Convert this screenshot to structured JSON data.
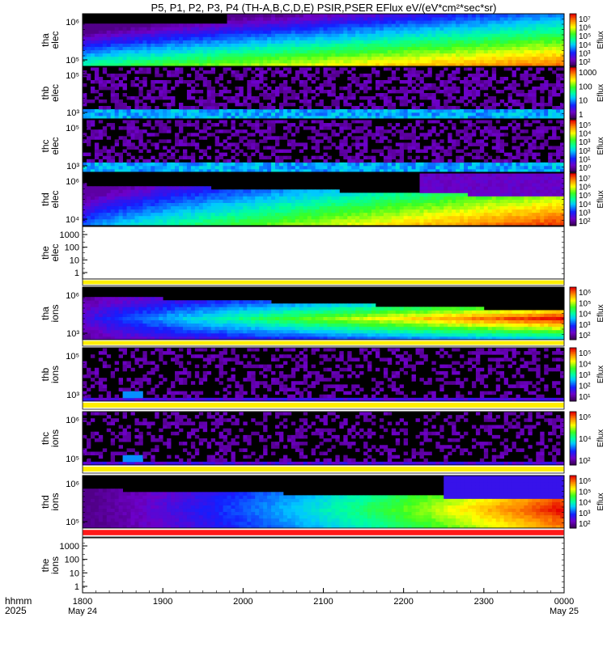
{
  "chart_data": {
    "type": "heatmap",
    "title": "P5, P1, P2, P3, P4 (TH-A,B,C,D,E) PSIR,PSER EFlux eV/(eV*cm²*sec*sr)",
    "colorbar_label": "Eflux",
    "x_axis": {
      "label_line1": "hhmm",
      "label_line2": "2025",
      "ticks": [
        "1800",
        "1900",
        "2000",
        "2100",
        "2200",
        "2300",
        "0000"
      ],
      "start_date": "May 24",
      "end_date": "May 25"
    },
    "panels": [
      {
        "probe": "tha",
        "species": "elec",
        "kind": "spec",
        "ylabels": [
          "10⁶",
          "10⁵"
        ],
        "cbar": [
          "10⁷",
          "10⁶",
          "10⁵",
          "10⁴",
          "10³",
          "10²"
        ],
        "profile": "grow_high"
      },
      {
        "probe": "thb",
        "species": "elec",
        "kind": "spec",
        "ylabels": [
          "10⁵",
          "10³"
        ],
        "cbar": [
          "1000",
          "100",
          "10",
          "1"
        ],
        "profile": "noise"
      },
      {
        "probe": "thc",
        "species": "elec",
        "kind": "spec",
        "ylabels": [
          "10⁵",
          "10³"
        ],
        "cbar": [
          "10⁵",
          "10⁴",
          "10³",
          "10²",
          "10¹",
          "10⁰"
        ],
        "profile": "noise"
      },
      {
        "probe": "thd",
        "species": "elec",
        "kind": "spec",
        "ylabels": [
          "10⁶",
          "10⁴"
        ],
        "cbar": [
          "10⁷",
          "10⁶",
          "10⁵",
          "10⁴",
          "10³",
          "10²"
        ],
        "profile": "grow_med"
      },
      {
        "probe": "the",
        "species": "elec",
        "kind": "empty",
        "ylabels": [
          "1000",
          "100",
          "10",
          "1"
        ],
        "flag": "yellow"
      },
      {
        "probe": "tha",
        "species": "ions",
        "kind": "spec",
        "ylabels": [
          "10⁶",
          "10³"
        ],
        "cbar": [
          "10⁶",
          "10⁵",
          "10⁴",
          "10³",
          "10²"
        ],
        "profile": "grow_ions_a",
        "flag": "yellow"
      },
      {
        "probe": "thb",
        "species": "ions",
        "kind": "spec",
        "ylabels": [
          "10⁵",
          "10³"
        ],
        "cbar": [
          "10⁵",
          "10⁴",
          "10³",
          "10²",
          "10¹"
        ],
        "profile": "noise_ions",
        "flag": "yellow"
      },
      {
        "probe": "thc",
        "species": "ions",
        "kind": "spec",
        "ylabels": [
          "10⁶",
          "10⁵"
        ],
        "cbar": [
          "10⁶",
          "10⁴",
          "10²"
        ],
        "profile": "noise_ions",
        "flag": "yellow"
      },
      {
        "probe": "thd",
        "species": "ions",
        "kind": "spec",
        "ylabels": [
          "10⁶",
          "10⁵"
        ],
        "cbar": [
          "10⁶",
          "10⁵",
          "10⁴",
          "10³",
          "10²"
        ],
        "profile": "grow_ions_d",
        "flag": "red"
      },
      {
        "probe": "the",
        "species": "ions",
        "kind": "empty",
        "ylabels": [
          "1000",
          "100",
          "10",
          "1"
        ]
      }
    ]
  }
}
